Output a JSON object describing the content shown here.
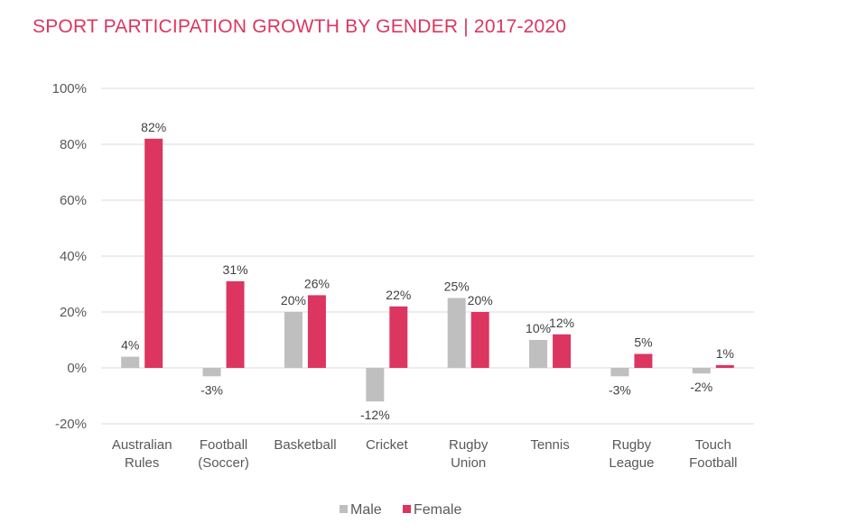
{
  "chart_data": {
    "type": "bar",
    "title": "SPORT PARTICIPATION GROWTH BY GENDER | 2017-2020",
    "xlabel": "",
    "ylabel": "",
    "ylim": [
      -20,
      100
    ],
    "yticks": [
      -20,
      0,
      20,
      40,
      60,
      80,
      100
    ],
    "ytick_labels": [
      "-20%",
      "0%",
      "20%",
      "40%",
      "60%",
      "80%",
      "100%"
    ],
    "grid": true,
    "legend_position": "bottom-center",
    "categories": [
      [
        "Australian",
        "Rules"
      ],
      [
        "Football",
        "(Soccer)"
      ],
      [
        "Basketball"
      ],
      [
        "Cricket"
      ],
      [
        "Rugby",
        "Union"
      ],
      [
        "Tennis"
      ],
      [
        "Rugby",
        "League"
      ],
      [
        "Touch",
        "Football"
      ]
    ],
    "series": [
      {
        "name": "Male",
        "color": "#bfbfbf",
        "values": [
          4,
          -3,
          20,
          -12,
          25,
          10,
          -3,
          -2
        ],
        "labels": [
          "4%",
          "-3%",
          "20%",
          "-12%",
          "25%",
          "10%",
          "-3%",
          "-2%"
        ]
      },
      {
        "name": "Female",
        "color": "#dc3660",
        "values": [
          82,
          31,
          26,
          22,
          20,
          12,
          5,
          1
        ],
        "labels": [
          "82%",
          "31%",
          "26%",
          "22%",
          "20%",
          "12%",
          "5%",
          "1%"
        ]
      }
    ]
  }
}
